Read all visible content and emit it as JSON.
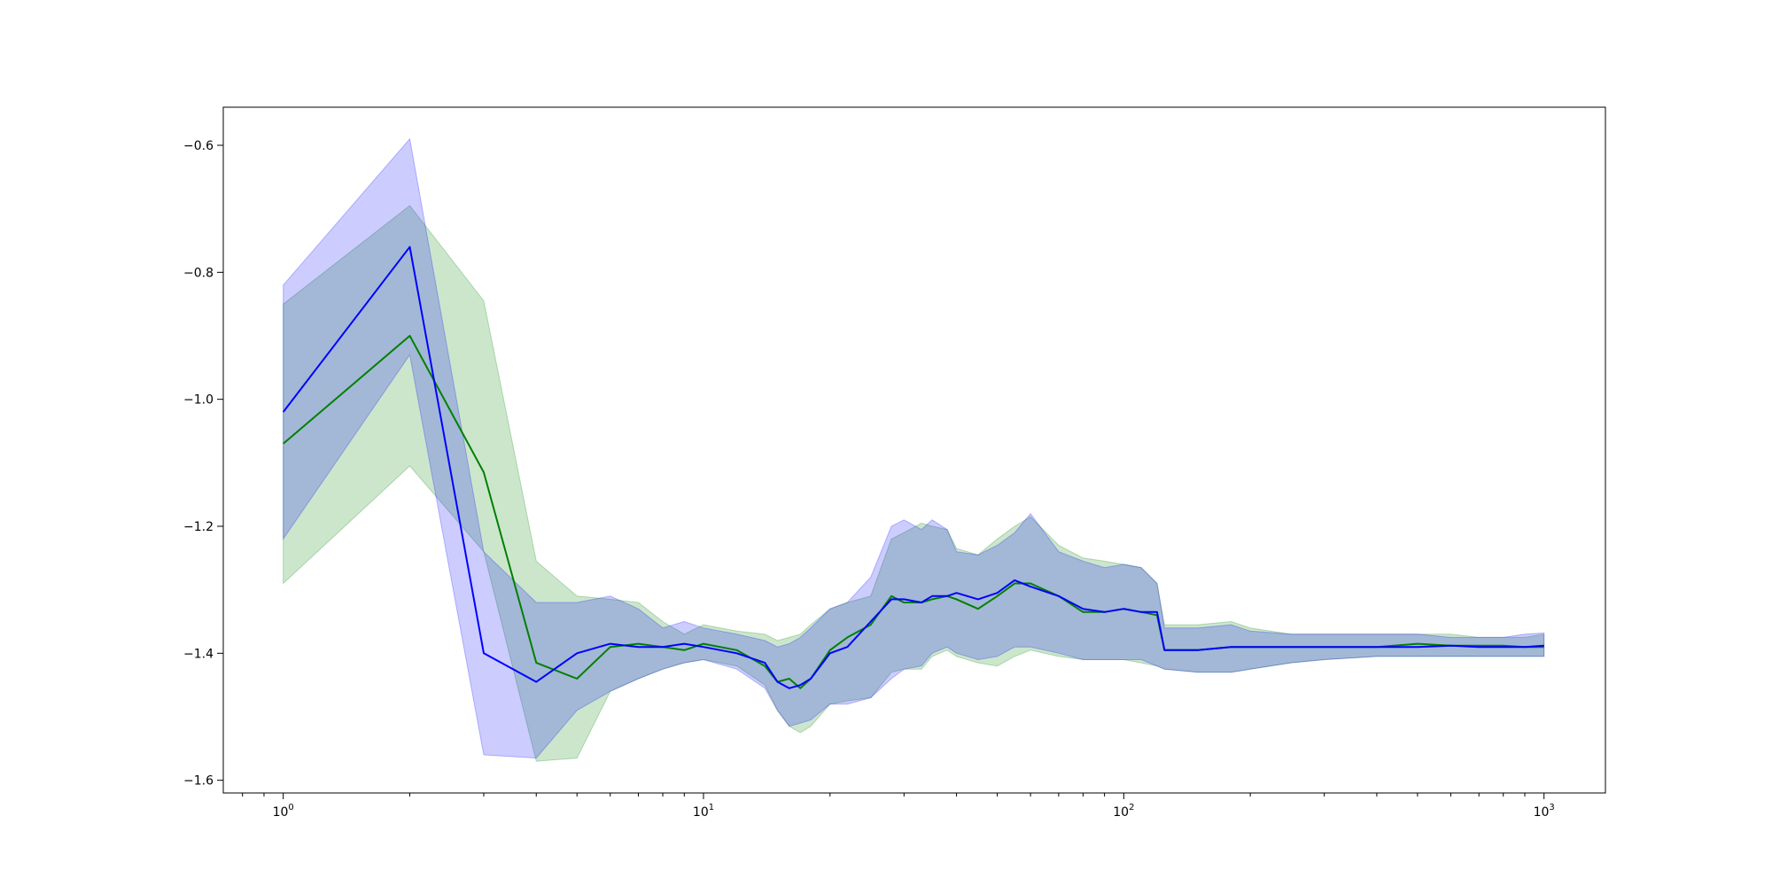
{
  "chart_data": {
    "type": "line",
    "title": "",
    "xlabel": "",
    "ylabel": "",
    "xscale": "log",
    "xlim": [
      0.72,
      1400
    ],
    "ylim": [
      -1.62,
      -0.54
    ],
    "grid": false,
    "legend": "none",
    "x_ticks": [
      {
        "value": 1,
        "base": "10",
        "exp": "0"
      },
      {
        "value": 10,
        "base": "10",
        "exp": "1"
      },
      {
        "value": 100,
        "base": "10",
        "exp": "2"
      },
      {
        "value": 1000,
        "base": "10",
        "exp": "3"
      }
    ],
    "y_ticks": [
      {
        "value": -0.6,
        "label": "−0.6"
      },
      {
        "value": -0.8,
        "label": "−0.8"
      },
      {
        "value": -1.0,
        "label": "−1.0"
      },
      {
        "value": -1.2,
        "label": "−1.2"
      },
      {
        "value": -1.4,
        "label": "−1.4"
      },
      {
        "value": -1.6,
        "label": "−1.6"
      }
    ],
    "series": [
      {
        "color": "#008000",
        "band_color": "#008000",
        "x": [
          1,
          2,
          3,
          4,
          5,
          6,
          7,
          8,
          9,
          10,
          12,
          14,
          15,
          16,
          17,
          18,
          20,
          22,
          25,
          28,
          30,
          33,
          35,
          38,
          40,
          45,
          50,
          55,
          60,
          70,
          80,
          90,
          100,
          110,
          120,
          125,
          150,
          180,
          200,
          250,
          300,
          400,
          500,
          600,
          700,
          800,
          900,
          1000
        ],
        "y": [
          -1.07,
          -0.9,
          -1.115,
          -1.415,
          -1.44,
          -1.39,
          -1.385,
          -1.39,
          -1.395,
          -1.385,
          -1.395,
          -1.42,
          -1.445,
          -1.44,
          -1.455,
          -1.44,
          -1.395,
          -1.375,
          -1.355,
          -1.31,
          -1.32,
          -1.32,
          -1.315,
          -1.31,
          -1.315,
          -1.33,
          -1.31,
          -1.29,
          -1.29,
          -1.31,
          -1.335,
          -1.335,
          -1.33,
          -1.335,
          -1.34,
          -1.395,
          -1.395,
          -1.39,
          -1.39,
          -1.39,
          -1.39,
          -1.39,
          -1.385,
          -1.388,
          -1.388,
          -1.388,
          -1.39,
          -1.39
        ],
        "upper": [
          -0.85,
          -0.695,
          -0.845,
          -1.255,
          -1.31,
          -1.315,
          -1.32,
          -1.35,
          -1.37,
          -1.355,
          -1.365,
          -1.37,
          -1.38,
          -1.375,
          -1.37,
          -1.355,
          -1.33,
          -1.32,
          -1.31,
          -1.22,
          -1.21,
          -1.195,
          -1.2,
          -1.205,
          -1.235,
          -1.245,
          -1.22,
          -1.2,
          -1.185,
          -1.23,
          -1.25,
          -1.255,
          -1.26,
          -1.265,
          -1.29,
          -1.355,
          -1.355,
          -1.35,
          -1.36,
          -1.37,
          -1.37,
          -1.37,
          -1.37,
          -1.37,
          -1.375,
          -1.375,
          -1.375,
          -1.37
        ],
        "lower": [
          -1.29,
          -1.105,
          -1.24,
          -1.57,
          -1.565,
          -1.46,
          -1.44,
          -1.425,
          -1.415,
          -1.41,
          -1.42,
          -1.45,
          -1.49,
          -1.515,
          -1.525,
          -1.515,
          -1.48,
          -1.475,
          -1.47,
          -1.43,
          -1.425,
          -1.425,
          -1.405,
          -1.395,
          -1.405,
          -1.415,
          -1.42,
          -1.405,
          -1.395,
          -1.405,
          -1.41,
          -1.41,
          -1.41,
          -1.415,
          -1.42,
          -1.425,
          -1.43,
          -1.43,
          -1.425,
          -1.415,
          -1.41,
          -1.405,
          -1.405,
          -1.405,
          -1.405,
          -1.405,
          -1.405,
          -1.405
        ]
      },
      {
        "color": "#0000ff",
        "band_color": "#0000ff",
        "x": [
          1,
          2,
          3,
          4,
          5,
          6,
          7,
          8,
          9,
          10,
          12,
          14,
          15,
          16,
          17,
          18,
          20,
          22,
          25,
          28,
          30,
          33,
          35,
          38,
          40,
          45,
          50,
          55,
          60,
          70,
          80,
          90,
          100,
          110,
          120,
          125,
          150,
          180,
          200,
          250,
          300,
          400,
          500,
          600,
          700,
          800,
          900,
          1000
        ],
        "y": [
          -1.02,
          -0.76,
          -1.4,
          -1.445,
          -1.4,
          -1.385,
          -1.39,
          -1.39,
          -1.385,
          -1.39,
          -1.4,
          -1.415,
          -1.445,
          -1.455,
          -1.45,
          -1.44,
          -1.4,
          -1.39,
          -1.35,
          -1.315,
          -1.315,
          -1.32,
          -1.31,
          -1.31,
          -1.305,
          -1.315,
          -1.305,
          -1.285,
          -1.295,
          -1.31,
          -1.33,
          -1.335,
          -1.33,
          -1.335,
          -1.335,
          -1.395,
          -1.395,
          -1.39,
          -1.39,
          -1.39,
          -1.39,
          -1.39,
          -1.39,
          -1.388,
          -1.39,
          -1.39,
          -1.39,
          -1.388
        ],
        "upper": [
          -0.82,
          -0.59,
          -1.24,
          -1.32,
          -1.32,
          -1.31,
          -1.33,
          -1.36,
          -1.35,
          -1.36,
          -1.37,
          -1.38,
          -1.39,
          -1.385,
          -1.375,
          -1.36,
          -1.33,
          -1.32,
          -1.28,
          -1.2,
          -1.19,
          -1.205,
          -1.19,
          -1.205,
          -1.24,
          -1.245,
          -1.23,
          -1.21,
          -1.18,
          -1.24,
          -1.255,
          -1.265,
          -1.26,
          -1.265,
          -1.29,
          -1.36,
          -1.36,
          -1.355,
          -1.365,
          -1.37,
          -1.37,
          -1.37,
          -1.37,
          -1.375,
          -1.375,
          -1.375,
          -1.37,
          -1.368
        ],
        "lower": [
          -1.22,
          -0.93,
          -1.56,
          -1.565,
          -1.49,
          -1.46,
          -1.44,
          -1.425,
          -1.415,
          -1.41,
          -1.425,
          -1.455,
          -1.49,
          -1.515,
          -1.51,
          -1.505,
          -1.48,
          -1.48,
          -1.47,
          -1.44,
          -1.425,
          -1.42,
          -1.4,
          -1.39,
          -1.4,
          -1.41,
          -1.405,
          -1.39,
          -1.39,
          -1.4,
          -1.41,
          -1.41,
          -1.41,
          -1.41,
          -1.42,
          -1.425,
          -1.43,
          -1.43,
          -1.425,
          -1.415,
          -1.41,
          -1.405,
          -1.405,
          -1.405,
          -1.405,
          -1.405,
          -1.405,
          -1.405
        ]
      }
    ]
  }
}
